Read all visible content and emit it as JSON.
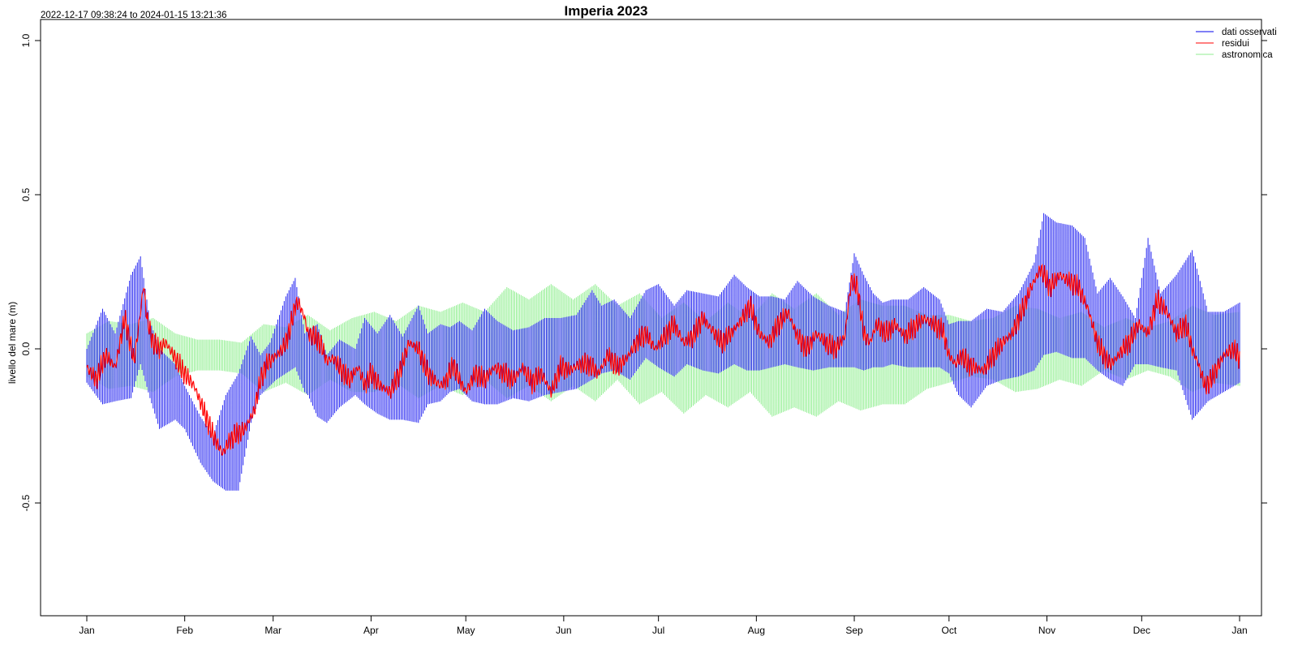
{
  "chart_data": {
    "type": "line",
    "title": "Imperia 2023",
    "subtitle": "2022-12-17 09:38:24 to 2024-01-15 13:21:36",
    "xlabel": "",
    "ylabel": "livello del mare (m)",
    "ylim": [
      -0.87,
      1.07
    ],
    "xlim": [
      -17,
      387
    ],
    "grid": false,
    "legend_position": "top-right",
    "x_ticks": [
      {
        "label": "Jan",
        "day": 0
      },
      {
        "label": "Feb",
        "day": 31
      },
      {
        "label": "Mar",
        "day": 59
      },
      {
        "label": "Apr",
        "day": 90
      },
      {
        "label": "May",
        "day": 120
      },
      {
        "label": "Jun",
        "day": 151
      },
      {
        "label": "Jul",
        "day": 181
      },
      {
        "label": "Aug",
        "day": 212
      },
      {
        "label": "Sep",
        "day": 243
      },
      {
        "label": "Oct",
        "day": 273
      },
      {
        "label": "Nov",
        "day": 304
      },
      {
        "label": "Dec",
        "day": 334
      },
      {
        "label": "Jan",
        "day": 365
      }
    ],
    "y_ticks": [
      {
        "label": "-0.5",
        "value": -0.5
      },
      {
        "label": "0.0",
        "value": 0.0
      },
      {
        "label": "0.5",
        "value": 0.5
      },
      {
        "label": "1.0",
        "value": 1.0
      }
    ],
    "series": [
      {
        "name": "dati osservati",
        "color": "#0000ee",
        "x": [
          0,
          5,
          9,
          14,
          17,
          20,
          23,
          28,
          31,
          36,
          40,
          44,
          48,
          52,
          55,
          58,
          60,
          63,
          66,
          69,
          70,
          73,
          76,
          80,
          85,
          88,
          92,
          96,
          100,
          105,
          108,
          112,
          115,
          118,
          122,
          126,
          130,
          135,
          140,
          145,
          150,
          155,
          160,
          163,
          167,
          172,
          177,
          181,
          186,
          190,
          195,
          200,
          205,
          209,
          213,
          217,
          221,
          225,
          230,
          235,
          240,
          243,
          246,
          249,
          252,
          255,
          260,
          265,
          270,
          273,
          276,
          280,
          285,
          290,
          295,
          300,
          303,
          307,
          312,
          316,
          320,
          324,
          328,
          332,
          336,
          340,
          345,
          350,
          355,
          360,
          365
        ],
        "upper": [
          0.0,
          0.13,
          0.05,
          0.24,
          0.3,
          0.09,
          0.0,
          -0.05,
          -0.12,
          -0.22,
          -0.28,
          -0.15,
          -0.08,
          0.04,
          -0.02,
          0.02,
          0.08,
          0.17,
          0.23,
          0.05,
          0.06,
          0.08,
          -0.02,
          0.03,
          0.0,
          0.1,
          0.05,
          0.11,
          0.04,
          0.14,
          0.05,
          0.08,
          0.07,
          0.09,
          0.06,
          0.13,
          0.09,
          0.06,
          0.07,
          0.1,
          0.1,
          0.11,
          0.19,
          0.14,
          0.16,
          0.1,
          0.19,
          0.21,
          0.14,
          0.19,
          0.18,
          0.17,
          0.24,
          0.2,
          0.17,
          0.17,
          0.16,
          0.22,
          0.17,
          0.14,
          0.12,
          0.31,
          0.24,
          0.18,
          0.15,
          0.16,
          0.16,
          0.2,
          0.16,
          0.08,
          0.09,
          0.09,
          0.13,
          0.12,
          0.18,
          0.28,
          0.44,
          0.41,
          0.4,
          0.36,
          0.18,
          0.23,
          0.17,
          0.1,
          0.36,
          0.18,
          0.24,
          0.32,
          0.12,
          0.12,
          0.15
        ],
        "lower": [
          -0.11,
          -0.18,
          -0.17,
          -0.16,
          -0.05,
          -0.16,
          -0.26,
          -0.23,
          -0.26,
          -0.37,
          -0.43,
          -0.46,
          -0.46,
          -0.24,
          -0.15,
          -0.12,
          -0.1,
          -0.08,
          -0.06,
          -0.14,
          -0.15,
          -0.22,
          -0.24,
          -0.19,
          -0.15,
          -0.18,
          -0.21,
          -0.23,
          -0.23,
          -0.24,
          -0.18,
          -0.17,
          -0.14,
          -0.13,
          -0.17,
          -0.18,
          -0.18,
          -0.16,
          -0.17,
          -0.15,
          -0.14,
          -0.13,
          -0.1,
          -0.08,
          -0.07,
          -0.1,
          -0.03,
          -0.06,
          -0.09,
          -0.05,
          -0.07,
          -0.08,
          -0.05,
          -0.07,
          -0.07,
          -0.06,
          -0.05,
          -0.06,
          -0.07,
          -0.06,
          -0.06,
          -0.06,
          -0.07,
          -0.06,
          -0.06,
          -0.05,
          -0.06,
          -0.06,
          -0.06,
          -0.08,
          -0.15,
          -0.19,
          -0.12,
          -0.1,
          -0.09,
          -0.07,
          -0.02,
          -0.01,
          -0.03,
          -0.03,
          -0.07,
          -0.1,
          -0.12,
          -0.05,
          -0.05,
          -0.06,
          -0.07,
          -0.23,
          -0.17,
          -0.14,
          -0.11
        ]
      },
      {
        "name": "residui",
        "color": "#ff0000",
        "x": [
          0,
          3,
          6,
          9,
          12,
          15,
          17,
          18,
          19,
          21,
          23,
          25,
          28,
          31,
          34,
          37,
          40,
          43,
          45,
          47,
          50,
          53,
          55,
          57,
          60,
          62,
          64,
          66,
          67,
          69,
          70,
          72,
          74,
          76,
          78,
          80,
          83,
          86,
          88,
          90,
          93,
          96,
          99,
          102,
          105,
          108,
          110,
          112,
          114,
          116,
          118,
          120,
          123,
          126,
          129,
          132,
          135,
          138,
          141,
          144,
          147,
          150,
          153,
          156,
          159,
          162,
          165,
          168,
          171,
          174,
          177,
          180,
          183,
          186,
          189,
          192,
          195,
          198,
          201,
          204,
          207,
          210,
          213,
          216,
          219,
          222,
          225,
          228,
          231,
          234,
          237,
          240,
          242,
          244,
          246,
          248,
          250,
          253,
          256,
          259,
          262,
          265,
          268,
          271,
          273,
          275,
          277,
          279,
          281,
          284,
          287,
          290,
          293,
          296,
          299,
          302,
          305,
          308,
          311,
          314,
          317,
          320,
          322,
          324,
          326,
          328,
          330,
          333,
          336,
          339,
          342,
          345,
          348,
          350,
          352,
          354,
          356,
          358,
          360,
          363,
          365
        ],
        "y": [
          -0.06,
          -0.1,
          -0.02,
          -0.06,
          0.1,
          -0.04,
          0.12,
          0.21,
          0.1,
          0.02,
          0.0,
          0.02,
          -0.03,
          -0.08,
          -0.12,
          -0.2,
          -0.28,
          -0.34,
          -0.3,
          -0.28,
          -0.26,
          -0.2,
          -0.1,
          -0.05,
          -0.02,
          0.0,
          0.05,
          0.14,
          0.15,
          0.1,
          0.05,
          0.04,
          0.02,
          -0.04,
          -0.03,
          -0.06,
          -0.1,
          -0.06,
          -0.12,
          -0.08,
          -0.12,
          -0.14,
          -0.08,
          0.02,
          0.0,
          -0.08,
          -0.1,
          -0.12,
          -0.1,
          -0.05,
          -0.1,
          -0.14,
          -0.08,
          -0.1,
          -0.06,
          -0.08,
          -0.1,
          -0.06,
          -0.11,
          -0.08,
          -0.14,
          -0.06,
          -0.07,
          -0.05,
          -0.05,
          -0.08,
          -0.02,
          -0.06,
          -0.03,
          0.02,
          0.05,
          0.0,
          0.04,
          0.08,
          0.02,
          0.04,
          0.1,
          0.06,
          0.02,
          0.05,
          0.09,
          0.14,
          0.05,
          0.02,
          0.08,
          0.12,
          0.04,
          0.0,
          0.05,
          0.02,
          0.0,
          0.04,
          0.22,
          0.2,
          0.05,
          0.02,
          0.08,
          0.05,
          0.08,
          0.04,
          0.07,
          0.1,
          0.08,
          0.06,
          -0.02,
          -0.05,
          -0.02,
          -0.05,
          -0.06,
          -0.07,
          -0.02,
          0.02,
          0.05,
          0.12,
          0.2,
          0.26,
          0.2,
          0.24,
          0.22,
          0.2,
          0.13,
          0.02,
          -0.02,
          -0.05,
          -0.03,
          0.0,
          0.02,
          0.08,
          0.05,
          0.16,
          0.12,
          0.05,
          0.08,
          0.0,
          -0.05,
          -0.12,
          -0.1,
          -0.06,
          -0.02,
          0.0,
          -0.03
        ]
      },
      {
        "name": "astronomica",
        "color": "#90ee90",
        "x": [
          0,
          7,
          14,
          21,
          28,
          35,
          42,
          49,
          56,
          63,
          70,
          77,
          84,
          91,
          98,
          105,
          112,
          119,
          126,
          133,
          140,
          147,
          154,
          161,
          168,
          175,
          182,
          189,
          196,
          203,
          210,
          217,
          224,
          231,
          238,
          245,
          252,
          259,
          266,
          273,
          280,
          287,
          294,
          301,
          308,
          315,
          322,
          329,
          336,
          343,
          350,
          357,
          365
        ],
        "amplitude": [
          0.07,
          0.11,
          0.1,
          0.12,
          0.07,
          0.05,
          0.05,
          0.05,
          0.11,
          0.09,
          0.13,
          0.08,
          0.12,
          0.13,
          0.1,
          0.15,
          0.12,
          0.15,
          0.11,
          0.18,
          0.14,
          0.19,
          0.14,
          0.19,
          0.12,
          0.18,
          0.12,
          0.18,
          0.12,
          0.17,
          0.12,
          0.2,
          0.16,
          0.2,
          0.14,
          0.18,
          0.16,
          0.16,
          0.12,
          0.11,
          0.09,
          0.1,
          0.14,
          0.13,
          0.1,
          0.12,
          0.07,
          0.1,
          0.07,
          0.09,
          0.14,
          0.11,
          0.12
        ],
        "mean": [
          -0.02,
          -0.02,
          -0.02,
          -0.02,
          -0.02,
          -0.02,
          -0.02,
          -0.03,
          -0.03,
          -0.02,
          -0.02,
          -0.02,
          -0.02,
          -0.01,
          -0.01,
          -0.01,
          0.0,
          0.0,
          0.01,
          0.02,
          0.02,
          0.02,
          0.02,
          0.02,
          0.02,
          0.0,
          -0.02,
          -0.03,
          -0.03,
          -0.02,
          -0.02,
          -0.02,
          -0.03,
          -0.02,
          -0.03,
          -0.02,
          -0.02,
          -0.02,
          -0.01,
          0.0,
          0.0,
          0.0,
          0.0,
          0.0,
          0.0,
          0.0,
          0.0,
          0.0,
          0.0,
          0.0,
          0.0,
          0.0,
          0.0
        ]
      }
    ]
  },
  "legend": {
    "items": [
      {
        "label": "dati osservati",
        "color": "#0000ee"
      },
      {
        "label": "residui",
        "color": "#ff0000"
      },
      {
        "label": "astronomica",
        "color": "#90ee90"
      }
    ]
  }
}
